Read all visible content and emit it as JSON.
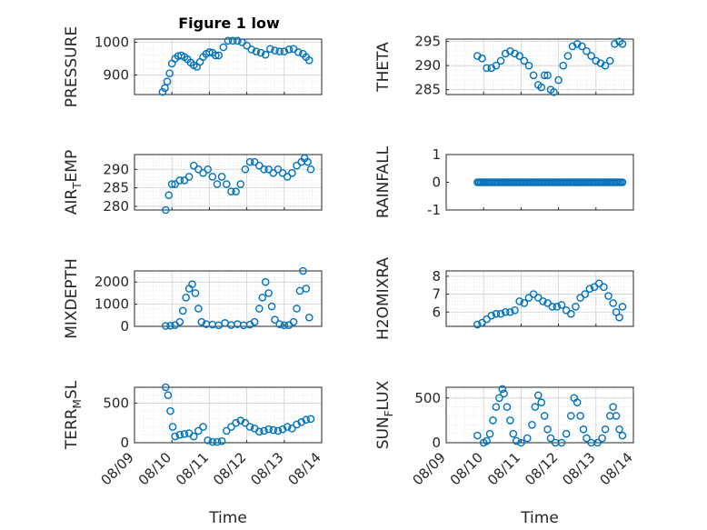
{
  "title": "Figure 1 low",
  "xlabel": "Time",
  "x_ticks": [
    "08/09",
    "08/10",
    "08/11",
    "08/12",
    "08/13",
    "08/14"
  ],
  "marker_color": "#0072bd",
  "chart_data": [
    {
      "type": "scatter",
      "ylabel": "PRESSURE",
      "ylabel_main": "PRESSURE",
      "ylabel_sub": "",
      "ylabel_tail": "",
      "xlim": [
        "08/09",
        "08/14"
      ],
      "ylim": [
        840,
        1010
      ],
      "yticks": [
        900,
        1000
      ],
      "grid": true,
      "minor_grid": true,
      "x": [
        "08/09 18:00",
        "08/09 19:30",
        "08/09 21:00",
        "08/09 22:30",
        "08/10 00:00",
        "08/10 02:00",
        "08/10 04:00",
        "08/10 06:00",
        "08/10 08:00",
        "08/10 10:00",
        "08/10 12:00",
        "08/10 14:00",
        "08/10 16:00",
        "08/10 18:00",
        "08/10 20:00",
        "08/10 22:00",
        "08/11 00:00",
        "08/11 02:00",
        "08/11 04:00",
        "08/11 06:00",
        "08/11 09:00",
        "08/11 12:00",
        "08/11 15:00",
        "08/11 18:00",
        "08/11 21:00",
        "08/12 00:00",
        "08/12 03:00",
        "08/12 06:00",
        "08/12 09:00",
        "08/12 12:00",
        "08/12 15:00",
        "08/12 18:00",
        "08/12 21:00",
        "08/13 00:00",
        "08/13 03:00",
        "08/13 06:00",
        "08/13 09:00",
        "08/13 12:00",
        "08/13 14:00",
        "08/13 16:00"
      ],
      "y": [
        848,
        860,
        880,
        905,
        935,
        950,
        958,
        960,
        955,
        948,
        938,
        930,
        925,
        940,
        955,
        965,
        970,
        968,
        960,
        960,
        985,
        1005,
        1005,
        1005,
        1000,
        990,
        978,
        972,
        968,
        962,
        980,
        975,
        972,
        972,
        978,
        980,
        970,
        965,
        955,
        945
      ]
    },
    {
      "type": "scatter",
      "ylabel": "THETA",
      "ylabel_main": "THETA",
      "ylabel_sub": "",
      "ylabel_tail": "",
      "xlim": [
        "08/09",
        "08/14"
      ],
      "ylim": [
        284,
        295.5
      ],
      "yticks": [
        285,
        290,
        295
      ],
      "grid": true,
      "minor_grid": true,
      "x": [
        "08/09 20:00",
        "08/09 23:00",
        "08/10 02:00",
        "08/10 05:00",
        "08/10 08:00",
        "08/10 11:00",
        "08/10 14:00",
        "08/10 17:00",
        "08/10 20:00",
        "08/10 23:00",
        "08/11 02:00",
        "08/11 05:00",
        "08/11 08:00",
        "08/11 11:00",
        "08/11 13:00",
        "08/11 15:00",
        "08/11 17:00",
        "08/11 19:00",
        "08/11 21:00",
        "08/12 00:00",
        "08/12 03:00",
        "08/12 06:00",
        "08/12 09:00",
        "08/12 12:00",
        "08/12 15:00",
        "08/12 18:00",
        "08/12 21:00",
        "08/13 00:00",
        "08/13 03:00",
        "08/13 06:00",
        "08/13 09:00",
        "08/13 12:00",
        "08/13 15:00",
        "08/13 17:00"
      ],
      "y": [
        292,
        291.5,
        289.5,
        289.5,
        290,
        291,
        292.5,
        293,
        292.5,
        292,
        291,
        290,
        288,
        286,
        285.5,
        288,
        288,
        285,
        284.5,
        287,
        290,
        292,
        294,
        294.5,
        294,
        293,
        292,
        291,
        290.5,
        290,
        291,
        294.5,
        295,
        294.5
      ]
    },
    {
      "type": "scatter",
      "ylabel": "AIR_TEMP",
      "ylabel_main": "AIR",
      "ylabel_sub": "T",
      "ylabel_tail": "EMP",
      "xlim": [
        "08/09",
        "08/14"
      ],
      "ylim": [
        279,
        294
      ],
      "yticks": [
        280,
        285,
        290
      ],
      "grid": true,
      "minor_grid": true,
      "x": [
        "08/09 20:00",
        "08/09 22:00",
        "08/10 00:00",
        "08/10 02:00",
        "08/10 05:00",
        "08/10 08:00",
        "08/10 11:00",
        "08/10 14:00",
        "08/10 17:00",
        "08/10 20:00",
        "08/10 23:00",
        "08/11 02:00",
        "08/11 05:00",
        "08/11 08:00",
        "08/11 11:00",
        "08/11 14:00",
        "08/11 17:00",
        "08/11 20:00",
        "08/11 23:00",
        "08/12 02:00",
        "08/12 05:00",
        "08/12 08:00",
        "08/12 11:00",
        "08/12 14:00",
        "08/12 17:00",
        "08/12 20:00",
        "08/12 23:00",
        "08/13 02:00",
        "08/13 05:00",
        "08/13 08:00",
        "08/13 11:00",
        "08/13 13:00",
        "08/13 15:00",
        "08/13 17:00"
      ],
      "y": [
        279,
        283,
        286,
        286,
        287,
        287,
        288,
        291,
        290,
        289,
        290,
        288,
        286,
        288,
        286,
        284,
        284,
        286,
        290,
        292,
        292,
        291,
        290,
        290,
        289,
        290,
        289,
        288,
        289,
        291,
        292,
        293,
        292,
        290
      ]
    },
    {
      "type": "scatter",
      "ylabel": "RAINFALL",
      "ylabel_main": "RAINFALL",
      "ylabel_sub": "",
      "ylabel_tail": "",
      "xlim": [
        "08/09",
        "08/14"
      ],
      "ylim": [
        -1,
        1
      ],
      "yticks": [
        -1,
        0,
        1
      ],
      "grid": false,
      "minor_grid": false,
      "x_range": [
        "08/09 20:00",
        "08/13 17:00"
      ],
      "step_hours": 1,
      "y_constant": 0
    },
    {
      "type": "scatter",
      "ylabel": "MIXDEPTH",
      "ylabel_main": "MIXDEPTH",
      "ylabel_sub": "",
      "ylabel_tail": "",
      "xlim": [
        "08/09",
        "08/14"
      ],
      "ylim": [
        0,
        2500
      ],
      "yticks": [
        0,
        1000,
        2000
      ],
      "grid": true,
      "minor_grid": true,
      "x": [
        "08/09 20:00",
        "08/09 23:00",
        "08/10 02:00",
        "08/10 05:00",
        "08/10 07:00",
        "08/10 09:00",
        "08/10 11:00",
        "08/10 13:00",
        "08/10 15:00",
        "08/10 17:00",
        "08/10 19:00",
        "08/10 22:00",
        "08/11 02:00",
        "08/11 06:00",
        "08/11 10:00",
        "08/11 14:00",
        "08/11 18:00",
        "08/11 22:00",
        "08/12 02:00",
        "08/12 05:00",
        "08/12 08:00",
        "08/12 10:00",
        "08/12 12:00",
        "08/12 14:00",
        "08/12 16:00",
        "08/12 18:00",
        "08/12 21:00",
        "08/13 00:00",
        "08/13 03:00",
        "08/13 06:00",
        "08/13 08:00",
        "08/13 10:00",
        "08/13 12:00",
        "08/13 14:00",
        "08/13 16:00"
      ],
      "y": [
        20,
        30,
        60,
        200,
        700,
        1300,
        1700,
        1900,
        1500,
        800,
        200,
        100,
        80,
        50,
        150,
        60,
        100,
        50,
        80,
        200,
        800,
        1300,
        2000,
        1500,
        900,
        300,
        100,
        50,
        60,
        200,
        800,
        1600,
        2500,
        1700,
        400
      ]
    },
    {
      "type": "scatter",
      "ylabel": "H2OMIXRA",
      "ylabel_main": "H2OMIXRA",
      "ylabel_sub": "",
      "ylabel_tail": "",
      "xlim": [
        "08/09",
        "08/14"
      ],
      "ylim": [
        5.2,
        8.3
      ],
      "yticks": [
        6,
        7,
        8
      ],
      "grid": true,
      "minor_grid": true,
      "x": [
        "08/09 20:00",
        "08/09 23:00",
        "08/10 02:00",
        "08/10 05:00",
        "08/10 08:00",
        "08/10 11:00",
        "08/10 14:00",
        "08/10 17:00",
        "08/10 20:00",
        "08/10 23:00",
        "08/11 02:00",
        "08/11 05:00",
        "08/11 08:00",
        "08/11 11:00",
        "08/11 14:00",
        "08/11 17:00",
        "08/11 20:00",
        "08/11 23:00",
        "08/12 02:00",
        "08/12 05:00",
        "08/12 08:00",
        "08/12 11:00",
        "08/12 14:00",
        "08/12 17:00",
        "08/12 20:00",
        "08/12 23:00",
        "08/13 02:00",
        "08/13 05:00",
        "08/13 08:00",
        "08/13 11:00",
        "08/13 13:00",
        "08/13 15:00",
        "08/13 17:00"
      ],
      "y": [
        5.3,
        5.4,
        5.6,
        5.8,
        5.9,
        5.9,
        6.0,
        6.0,
        6.1,
        6.6,
        6.5,
        6.8,
        7.0,
        6.8,
        6.6,
        6.5,
        6.3,
        6.3,
        6.4,
        6.1,
        5.9,
        6.3,
        6.8,
        7.0,
        7.3,
        7.4,
        7.6,
        7.4,
        6.9,
        6.5,
        6.0,
        5.7,
        6.3
      ]
    },
    {
      "type": "scatter",
      "ylabel": "TERR_MSL",
      "ylabel_main": "TERR",
      "ylabel_sub": "M",
      "ylabel_tail": "SL",
      "xlim": [
        "08/09",
        "08/14"
      ],
      "ylim": [
        0,
        700
      ],
      "yticks": [
        0,
        500
      ],
      "grid": true,
      "minor_grid": true,
      "x": [
        "08/09 20:00",
        "08/09 21:30",
        "08/09 23:00",
        "08/10 00:30",
        "08/10 02:00",
        "08/10 05:00",
        "08/10 08:00",
        "08/10 11:00",
        "08/10 14:00",
        "08/10 17:00",
        "08/10 20:00",
        "08/10 23:00",
        "08/11 02:00",
        "08/11 05:00",
        "08/11 08:00",
        "08/11 11:00",
        "08/11 14:00",
        "08/11 17:00",
        "08/11 20:00",
        "08/11 23:00",
        "08/12 02:00",
        "08/12 05:00",
        "08/12 08:00",
        "08/12 11:00",
        "08/12 14:00",
        "08/12 17:00",
        "08/12 20:00",
        "08/12 23:00",
        "08/13 02:00",
        "08/13 05:00",
        "08/13 08:00",
        "08/13 11:00",
        "08/13 14:00",
        "08/13 17:00"
      ],
      "y": [
        700,
        600,
        400,
        200,
        80,
        100,
        110,
        120,
        80,
        150,
        200,
        30,
        10,
        10,
        20,
        150,
        200,
        250,
        280,
        250,
        200,
        180,
        140,
        150,
        170,
        160,
        150,
        170,
        200,
        180,
        230,
        260,
        290,
        300
      ]
    },
    {
      "type": "scatter",
      "ylabel": "SUN_FLUX",
      "ylabel_main": "SUN",
      "ylabel_sub": "F",
      "ylabel_tail": "LUX",
      "xlim": [
        "08/09",
        "08/14"
      ],
      "ylim": [
        0,
        620
      ],
      "yticks": [
        0,
        500
      ],
      "grid": true,
      "minor_grid": true,
      "x": [
        "08/09 20:00",
        "08/10 00:00",
        "08/10 02:00",
        "08/10 04:00",
        "08/10 06:00",
        "08/10 08:00",
        "08/10 10:00",
        "08/10 12:00",
        "08/10 13:00",
        "08/10 15:00",
        "08/10 17:00",
        "08/10 19:00",
        "08/10 21:00",
        "08/11 00:00",
        "08/11 04:00",
        "08/11 07:00",
        "08/11 09:00",
        "08/11 11:00",
        "08/11 13:00",
        "08/11 15:00",
        "08/11 17:00",
        "08/11 19:00",
        "08/11 22:00",
        "08/12 02:00",
        "08/12 05:00",
        "08/12 08:00",
        "08/12 10:00",
        "08/12 12:00",
        "08/12 14:00",
        "08/12 16:00",
        "08/12 18:00",
        "08/12 21:00",
        "08/13 01:00",
        "08/13 04:00",
        "08/13 06:00",
        "08/13 09:00",
        "08/13 11:00",
        "08/13 13:00",
        "08/13 15:00",
        "08/13 17:00"
      ],
      "y": [
        80,
        0,
        20,
        100,
        250,
        400,
        500,
        600,
        550,
        400,
        250,
        100,
        20,
        0,
        50,
        200,
        400,
        530,
        450,
        300,
        150,
        50,
        0,
        0,
        100,
        300,
        500,
        450,
        300,
        150,
        50,
        0,
        0,
        50,
        150,
        300,
        400,
        300,
        150,
        80
      ]
    }
  ]
}
